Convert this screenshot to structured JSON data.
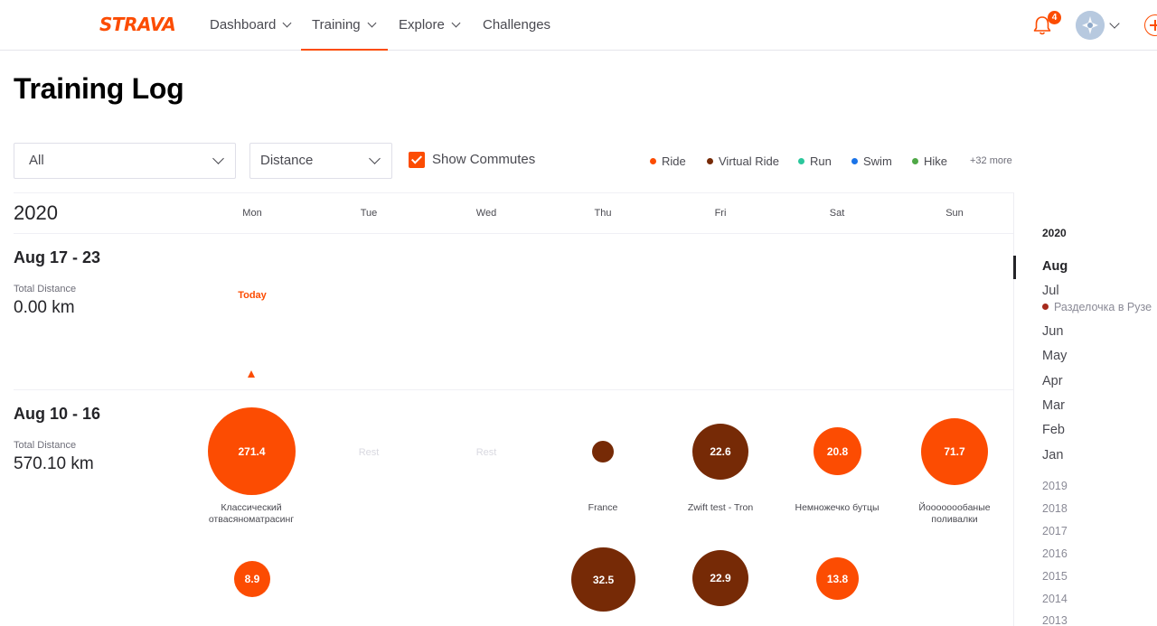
{
  "nav": {
    "logo": "STRAVA",
    "items": [
      {
        "label": "Dashboard"
      },
      {
        "label": "Training"
      },
      {
        "label": "Explore"
      },
      {
        "label": "Challenges"
      }
    ],
    "notification_count": "4"
  },
  "page": {
    "title": "Training Log"
  },
  "filters": {
    "sport": "All",
    "metric": "Distance",
    "commute_label": "Show Commutes"
  },
  "legend": [
    {
      "label": "Ride",
      "color": "#fc4c02"
    },
    {
      "label": "Virtual Ride",
      "color": "#762a06"
    },
    {
      "label": "Run",
      "color": "#2bc79c"
    },
    {
      "label": "Swim",
      "color": "#1a73e8"
    },
    {
      "label": "Hike",
      "color": "#4fa847"
    }
  ],
  "legend_more": "+32 more",
  "calendar": {
    "year": "2020",
    "days": [
      "Mon",
      "Tue",
      "Wed",
      "Thu",
      "Fri",
      "Sat",
      "Sun"
    ],
    "weeks": [
      {
        "range": "Aug 17 - 23",
        "total_label": "Total Distance",
        "total_value": "0.00 km",
        "today_label": "Today"
      },
      {
        "range": "Aug 10 - 16",
        "total_label": "Total Distance",
        "total_value": "570.10 km",
        "rest_label": "Rest",
        "activities": [
          {
            "value": "271.4",
            "name": "Классический отвасяноматрасинг"
          },
          {
            "value": "",
            "name": "France"
          },
          {
            "value": "22.6",
            "name": "Zwift test - Tron"
          },
          {
            "value": "20.8",
            "name": "Немножечко бутцы"
          },
          {
            "value": "71.7",
            "name": "Йоооооообаные поливалки"
          },
          {
            "value": "8.9"
          },
          {
            "value": "32.5"
          },
          {
            "value": "22.9"
          },
          {
            "value": "13.8"
          }
        ]
      }
    ]
  },
  "sidebar": {
    "year": "2020",
    "months": [
      "Aug",
      "Jul",
      "Jun",
      "May",
      "Apr",
      "Mar",
      "Feb",
      "Jan"
    ],
    "event": "Разделочка в Рузе",
    "past_years": [
      "2019",
      "2018",
      "2017",
      "2016",
      "2015",
      "2014",
      "2013"
    ]
  }
}
